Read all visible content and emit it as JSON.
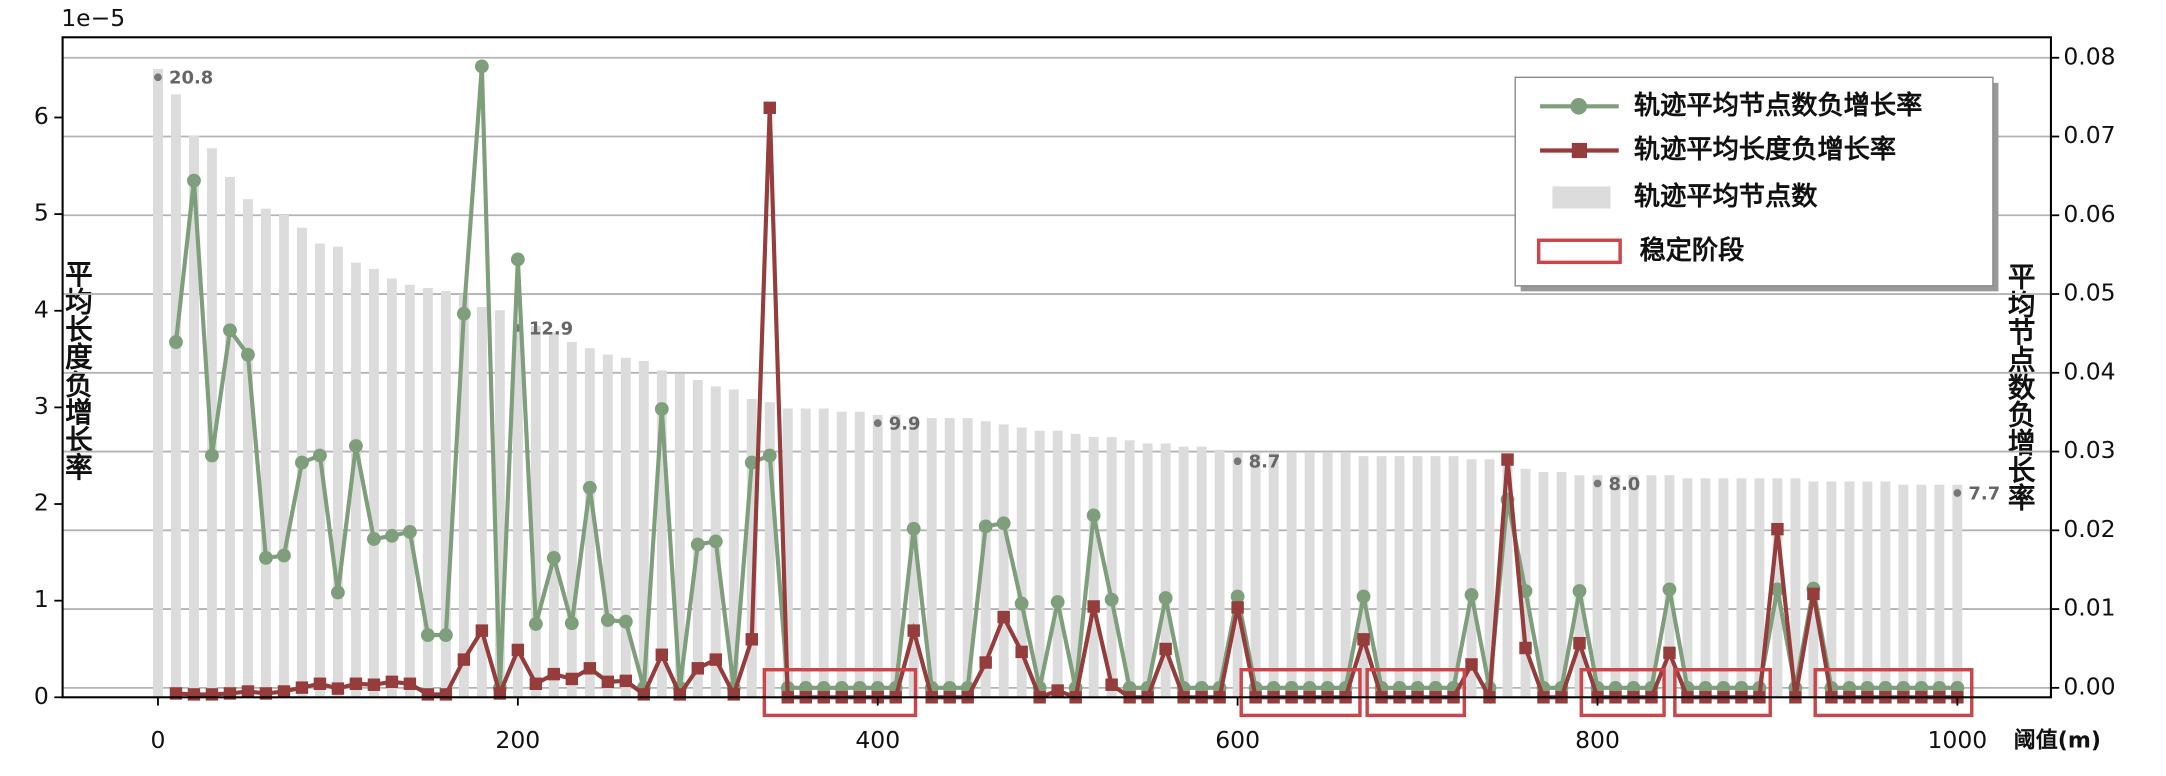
{
  "chart_data": {
    "type": "combo",
    "x": [
      0,
      10,
      20,
      30,
      40,
      50,
      60,
      70,
      80,
      90,
      100,
      110,
      120,
      130,
      140,
      150,
      160,
      170,
      180,
      190,
      200,
      210,
      220,
      230,
      240,
      250,
      260,
      270,
      280,
      290,
      300,
      310,
      320,
      330,
      340,
      350,
      360,
      370,
      380,
      390,
      400,
      410,
      420,
      430,
      440,
      450,
      460,
      470,
      480,
      490,
      500,
      510,
      520,
      530,
      540,
      550,
      560,
      570,
      580,
      590,
      600,
      610,
      620,
      630,
      640,
      650,
      660,
      670,
      680,
      690,
      700,
      710,
      720,
      730,
      740,
      750,
      760,
      770,
      780,
      790,
      800,
      810,
      820,
      830,
      840,
      850,
      860,
      870,
      880,
      890,
      900,
      910,
      920,
      930,
      940,
      950,
      960,
      970,
      980,
      990,
      1000
    ],
    "series": [
      {
        "name": "轨迹平均节点数负增长率",
        "kind": "line",
        "marker": "circle",
        "axis": "y2",
        "color": "#7f9e7c",
        "values": [
          null,
          0.0439,
          0.0644,
          0.0295,
          0.0454,
          0.0423,
          0.0165,
          0.0168,
          0.0286,
          0.0295,
          0.0121,
          0.0307,
          0.0189,
          0.0193,
          0.0198,
          0.0067,
          0.0067,
          0.0475,
          0.0789,
          0,
          0.0544,
          0.0081,
          0.0165,
          0.0082,
          0.0254,
          0.0086,
          0.0084,
          0,
          0.0354,
          0,
          0.0182,
          0.0186,
          0,
          0.0286,
          0.0295,
          0,
          0,
          0,
          0,
          0,
          0,
          0,
          0.0202,
          0,
          0,
          0,
          0.0205,
          0.0209,
          0.0107,
          0,
          0.0109,
          0,
          0.0219,
          0.0112,
          0,
          0,
          0.0114,
          0,
          0,
          0,
          0.0116,
          0,
          0,
          0,
          0,
          0,
          0,
          0.0116,
          0,
          0,
          0,
          0,
          0,
          0.0118,
          0,
          0.0239,
          0.0123,
          0,
          0,
          0.0123,
          0,
          0,
          0,
          0,
          0.0125,
          0,
          0,
          0,
          0,
          0,
          0.0125,
          0,
          0.0126,
          0,
          0,
          0,
          0,
          0,
          0,
          0,
          0
        ]
      },
      {
        "name": "轨迹平均长度负增长率",
        "kind": "line",
        "marker": "square",
        "axis": "y",
        "color": "#953c3c",
        "values": [
          null,
          0.04,
          0.03,
          0.03,
          0.04,
          0.06,
          0.04,
          0.06,
          0.1,
          0.14,
          0.09,
          0.14,
          0.13,
          0.16,
          0.14,
          0.03,
          0.03,
          0.39,
          0.69,
          0.04,
          0.49,
          0.14,
          0.24,
          0.19,
          0.3,
          0.16,
          0.17,
          0.03,
          0.44,
          0.03,
          0.3,
          0.39,
          0.03,
          0.6,
          6.1,
          0,
          0,
          0,
          0,
          0,
          0,
          0,
          0.69,
          0,
          0,
          0,
          0.36,
          0.83,
          0.47,
          0,
          0.07,
          0,
          0.94,
          0.13,
          0,
          0,
          0.5,
          0,
          0,
          0,
          0.93,
          0,
          0,
          0,
          0,
          0,
          0,
          0.6,
          0,
          0,
          0,
          0,
          0,
          0.34,
          0,
          2.46,
          0.51,
          0,
          0,
          0.56,
          0,
          0,
          0,
          0,
          0.46,
          0,
          0,
          0,
          0,
          0,
          1.74,
          0,
          1.07,
          0,
          0,
          0,
          0,
          0,
          0,
          0,
          0
        ]
      },
      {
        "name": "轨迹平均节点数",
        "kind": "bar",
        "axis": "y3",
        "color": "#dcdcdc",
        "values": [
          20.8,
          20.0,
          18.7,
          18.3,
          17.4,
          16.7,
          16.4,
          16.2,
          15.8,
          15.3,
          15.2,
          14.7,
          14.5,
          14.2,
          14.0,
          13.9,
          13.8,
          13.7,
          13.3,
          13.2,
          12.9,
          12.7,
          12.5,
          12.2,
          12.0,
          11.8,
          11.7,
          11.6,
          11.3,
          11.2,
          11.0,
          10.8,
          10.7,
          10.4,
          10.3,
          10.1,
          10.1,
          10.1,
          10.0,
          10.0,
          9.9,
          9.9,
          9.8,
          9.8,
          9.8,
          9.8,
          9.7,
          9.6,
          9.5,
          9.4,
          9.4,
          9.3,
          9.2,
          9.2,
          9.1,
          9.0,
          9.0,
          8.9,
          8.9,
          8.8,
          8.7,
          8.7,
          8.7,
          8.7,
          8.7,
          8.7,
          8.7,
          8.6,
          8.6,
          8.6,
          8.6,
          8.6,
          8.6,
          8.5,
          8.5,
          8.5,
          8.2,
          8.1,
          8.1,
          8.0,
          8.0,
          8.0,
          8.0,
          8.0,
          8.0,
          7.9,
          7.9,
          7.9,
          7.9,
          7.9,
          7.9,
          7.9,
          7.8,
          7.8,
          7.8,
          7.8,
          7.8,
          7.7,
          7.7,
          7.7,
          7.7
        ],
        "value_labels": [
          "20.8",
          null,
          null,
          null,
          null,
          null,
          null,
          null,
          null,
          null,
          null,
          null,
          null,
          null,
          null,
          null,
          null,
          null,
          null,
          null,
          "12.9",
          null,
          null,
          null,
          null,
          null,
          null,
          null,
          null,
          null,
          null,
          null,
          null,
          null,
          null,
          null,
          null,
          null,
          null,
          null,
          "9.9",
          null,
          null,
          null,
          null,
          null,
          null,
          null,
          null,
          null,
          null,
          null,
          null,
          null,
          null,
          null,
          null,
          null,
          null,
          null,
          "8.7",
          null,
          null,
          null,
          null,
          null,
          null,
          null,
          null,
          null,
          null,
          null,
          null,
          null,
          null,
          null,
          null,
          null,
          null,
          null,
          "8.0",
          null,
          null,
          null,
          null,
          null,
          null,
          null,
          null,
          null,
          null,
          null,
          null,
          null,
          null,
          null,
          null,
          null,
          null,
          null,
          "7.7"
        ]
      }
    ],
    "regions": {
      "name": "稳定阶段",
      "color": "#c9474a",
      "y2range": [
        -0.0035,
        0.0023
      ],
      "spans": [
        [
          337,
          421
        ],
        [
          602,
          668
        ],
        [
          672,
          726
        ],
        [
          791,
          837
        ],
        [
          843,
          896
        ],
        [
          921,
          1008
        ]
      ]
    },
    "xlabel": "阈值(m)",
    "ylabel": "平均长度负增长率",
    "y2label": "平均节点数负增长率",
    "y_offset_label": "1e−5",
    "xlim": [
      -53,
      1052
    ],
    "xticks": [
      0,
      200,
      400,
      600,
      800,
      1000
    ],
    "ylim": [
      0,
      6.83
    ],
    "yticks": [
      0,
      1,
      2,
      3,
      4,
      5,
      6
    ],
    "y2lim": [
      -0.0012,
      0.0826
    ],
    "y2ticks": [
      {
        "value": 0,
        "label": "0.00"
      },
      {
        "value": 0.01,
        "label": "0.01"
      },
      {
        "value": 0.02,
        "label": "0.02"
      },
      {
        "value": 0.03,
        "label": "0.03"
      },
      {
        "value": 0.04,
        "label": "0.04"
      },
      {
        "value": 0.05,
        "label": "0.05"
      },
      {
        "value": 0.06,
        "label": "0.06"
      },
      {
        "value": 0.07,
        "label": "0.07"
      },
      {
        "value": 0.08,
        "label": "0.08"
      }
    ],
    "y3lim": [
      1,
      21.8
    ],
    "grid": "y2",
    "legend": "upper right"
  }
}
